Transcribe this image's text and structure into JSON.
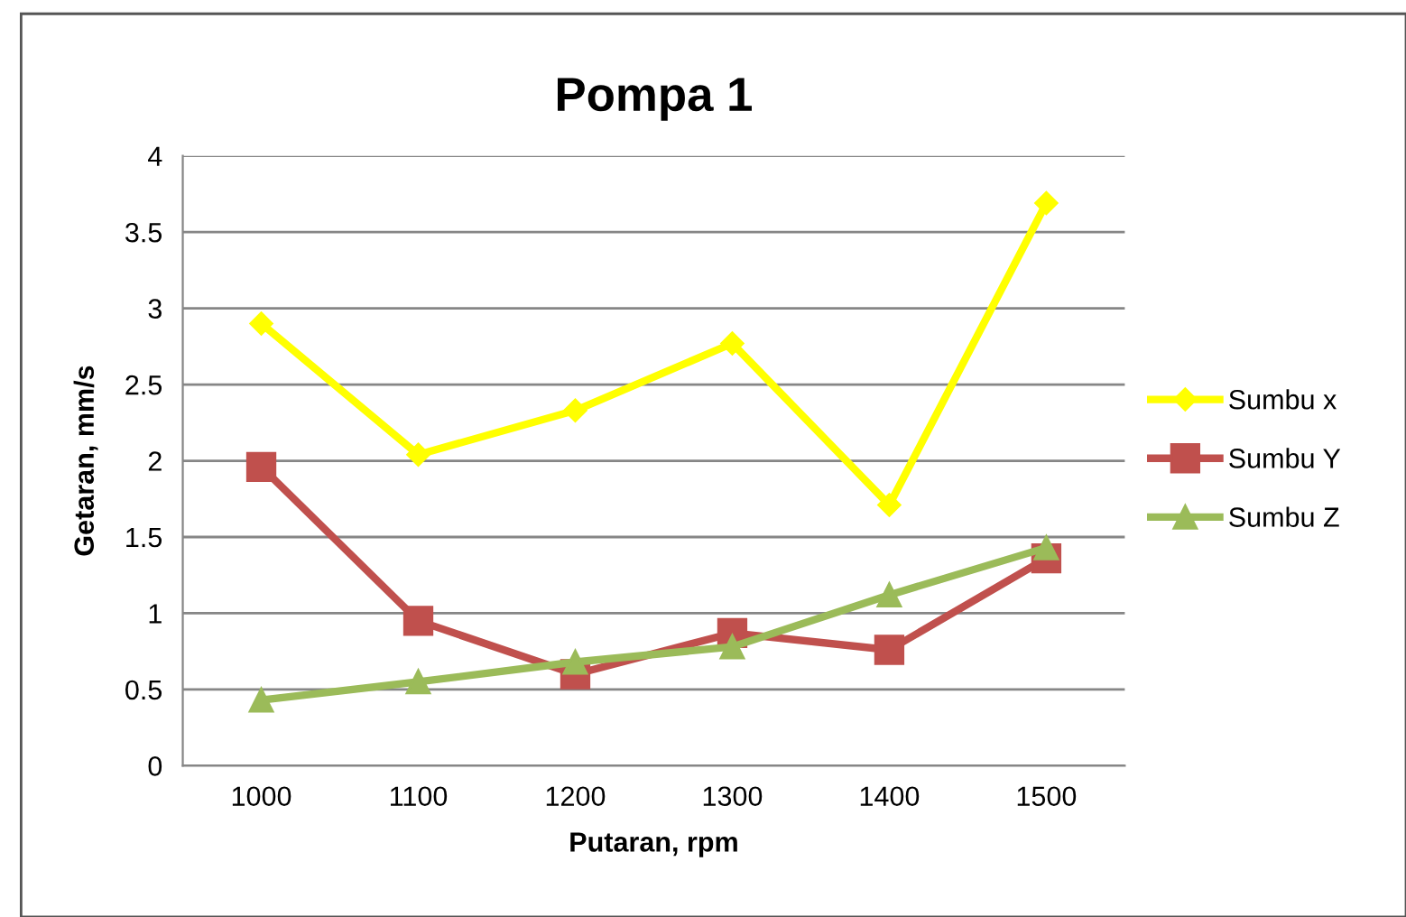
{
  "chart_data": {
    "type": "line",
    "title": "Pompa 1",
    "xlabel": "Putaran, rpm",
    "ylabel": "Getaran, mm/s",
    "categories": [
      "1000",
      "1100",
      "1200",
      "1300",
      "1400",
      "1500"
    ],
    "series": [
      {
        "name": "Sumbu x",
        "color": "#ffff00",
        "marker": "diamond",
        "values": [
          2.9,
          2.04,
          2.33,
          2.77,
          1.71,
          3.69
        ]
      },
      {
        "name": "Sumbu Y",
        "color": "#c0504d",
        "marker": "square",
        "values": [
          1.96,
          0.95,
          0.6,
          0.87,
          0.76,
          1.36
        ]
      },
      {
        "name": "Sumbu Z",
        "color": "#9bbb59",
        "marker": "triangle",
        "values": [
          0.43,
          0.55,
          0.68,
          0.78,
          1.12,
          1.43
        ]
      }
    ],
    "ylim": [
      0,
      4
    ],
    "yticks": [
      0,
      0.5,
      1,
      1.5,
      2,
      2.5,
      3,
      3.5,
      4
    ],
    "grid": "y",
    "legend": "right",
    "line_style": "solid"
  }
}
